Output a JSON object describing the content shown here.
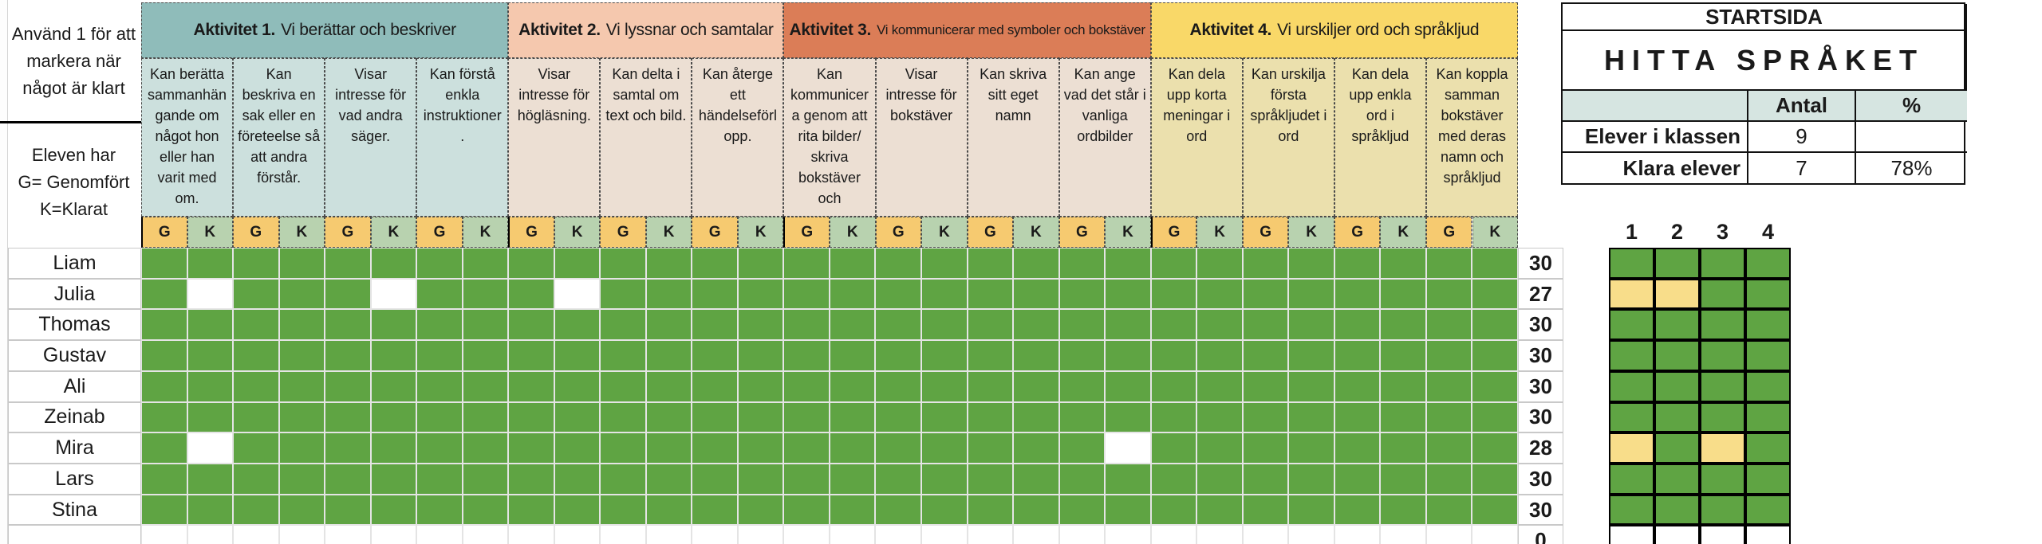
{
  "left_panel": {
    "instruction_lines": [
      "Använd 1 för att",
      "markera när",
      "något är klart"
    ],
    "legend_lines": [
      "Eleven har",
      "G= Genomfört",
      "K=Klarat"
    ]
  },
  "grid": {
    "g_label": "G",
    "k_label": "K",
    "g_color": "#F6CA70",
    "k_color": "#B8D2AF",
    "filled_color": "#5FA443",
    "empty_color": "#FFFFFF",
    "activities": [
      {
        "title": "Aktivitet 1.",
        "subtitle": "Vi berättar och beskriver",
        "band_color": "#8FBCBA",
        "cell_color": "#CCE0DD",
        "skills": [
          "Kan berätta sammanhängande om något hon eller han varit med om.",
          "Kan beskriva en sak eller en företeelse så att andra förstår.",
          "Visar intresse för vad andra säger.",
          "Kan förstå enkla instruktioner ."
        ]
      },
      {
        "title": "Aktivitet 2.",
        "subtitle": "Vi lyssnar och samtalar",
        "band_color": "#F5C8AE",
        "cell_color": "#ECDFD3",
        "skills": [
          "Visar intresse för högläsning.",
          "Kan delta i samtal om text och bild.",
          "Kan återge ett händelseförlopp."
        ]
      },
      {
        "title": "Aktivitet 3.",
        "subtitle": "Vi kommunicerar med symboler och bokstäver",
        "subtitle_small": true,
        "band_color": "#DB7D57",
        "cell_color": "#ECDFD3",
        "skills": [
          "Kan kommunicera genom att rita bilder/ skriva bokstäver och",
          "Visar intresse för bokstäver",
          "Kan skriva sitt eget namn",
          "Kan ange vad det står i vanliga ordbilder"
        ]
      },
      {
        "title": "Aktivitet 4.",
        "subtitle": "Vi urskiljer ord och språkljud",
        "band_color": "#F9D868",
        "cell_color": "#EBE0AD",
        "skills": [
          "Kan dela upp korta meningar i ord",
          "Kan urskilja första språkljudet i ord",
          "Kan dela upp enkla ord i språkljud",
          "Kan koppla samman bokstäver med deras namn och språkljud"
        ]
      }
    ]
  },
  "students": [
    {
      "name": "Liam",
      "total": "30",
      "missing": [],
      "mini": [
        "g",
        "g",
        "g",
        "g"
      ]
    },
    {
      "name": "Julia",
      "total": "27",
      "missing": [
        1,
        5,
        9
      ],
      "mini": [
        "y",
        "y",
        "g",
        "g"
      ]
    },
    {
      "name": "Thomas",
      "total": "30",
      "missing": [],
      "mini": [
        "g",
        "g",
        "g",
        "g"
      ]
    },
    {
      "name": "Gustav",
      "total": "30",
      "missing": [],
      "mini": [
        "g",
        "g",
        "g",
        "g"
      ]
    },
    {
      "name": "Ali",
      "total": "30",
      "missing": [],
      "mini": [
        "g",
        "g",
        "g",
        "g"
      ]
    },
    {
      "name": "Zeinab",
      "total": "30",
      "missing": [],
      "mini": [
        "g",
        "g",
        "g",
        "g"
      ]
    },
    {
      "name": "Mira",
      "total": "28",
      "missing": [
        1,
        21
      ],
      "mini": [
        "y",
        "g",
        "y",
        "g"
      ]
    },
    {
      "name": "Lars",
      "total": "30",
      "missing": [],
      "mini": [
        "g",
        "g",
        "g",
        "g"
      ]
    },
    {
      "name": "Stina",
      "total": "30",
      "missing": [],
      "mini": [
        "g",
        "g",
        "g",
        "g"
      ]
    },
    {
      "name": "",
      "total": "0",
      "empty": true,
      "mini": [
        "w",
        "w",
        "w",
        "w"
      ]
    }
  ],
  "mini_grid": {
    "headers": [
      "1",
      "2",
      "3",
      "4"
    ],
    "green": "#5FA443",
    "yellow": "#F8DD8A",
    "white": "#FFFFFF"
  },
  "right_panel": {
    "title": "STARTSIDA",
    "subtitle": "HITTA SPRÅKET",
    "header_bg": "#D6E5E1",
    "columns": [
      "",
      "Antal",
      "%"
    ],
    "rows": [
      {
        "label": "Elever i klassen",
        "antal": "9",
        "pct": ""
      },
      {
        "label": "Klara elever",
        "antal": "7",
        "pct": "78%"
      }
    ]
  }
}
